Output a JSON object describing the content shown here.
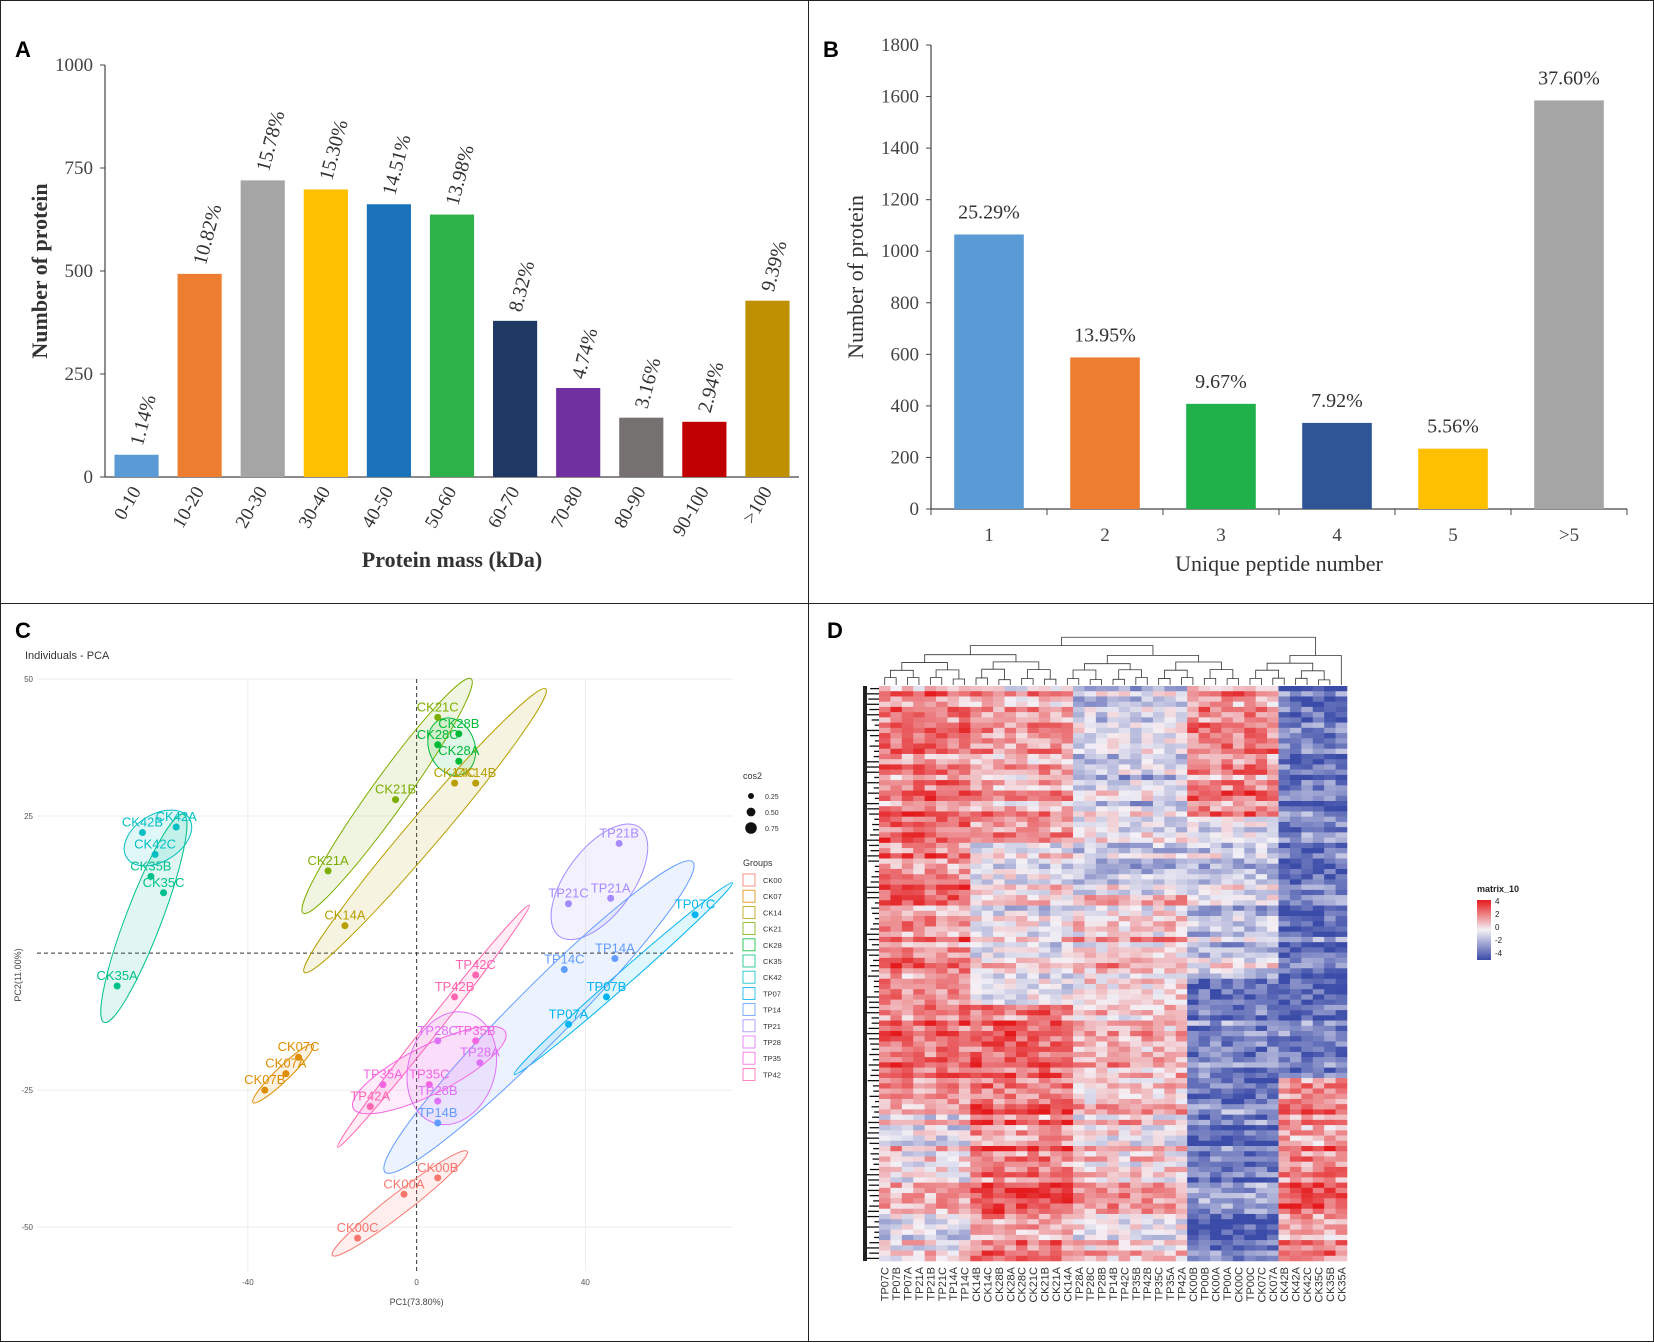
{
  "panel_labels": {
    "a": "A",
    "b": "B",
    "c": "C",
    "d": "D"
  },
  "chart_data": [
    {
      "panel": "A",
      "type": "bar",
      "title": "",
      "xlabel": "Protein mass (kDa)",
      "ylabel": "Number of protein",
      "ylim": [
        0,
        1000
      ],
      "yticks": [
        "0",
        "250",
        "500",
        "750",
        "1000"
      ],
      "categories": [
        "0-10",
        "10-20",
        "20-30",
        "30-40",
        "40-50",
        "50-60",
        "60-70",
        "70-80",
        "80-90",
        "90-100",
        ">100"
      ],
      "values": [
        54,
        493,
        720,
        698,
        662,
        637,
        379,
        216,
        144,
        134,
        428
      ],
      "data_labels": [
        "1.14%",
        "10.82%",
        "15.78%",
        "15.30%",
        "14.51%",
        "13.98%",
        "8.32%",
        "4.74%",
        "3.16%",
        "2.94%",
        "9.39%"
      ],
      "colors": [
        "#5b9bd5",
        "#ed7d31",
        "#a5a5a5",
        "#ffc000",
        "#1a72bb",
        "#2db24a",
        "#203864",
        "#7030a0",
        "#767171",
        "#c00000",
        "#bf9000"
      ]
    },
    {
      "panel": "B",
      "type": "bar",
      "title": "",
      "xlabel": "Unique peptide number",
      "ylabel": "Number of protein",
      "ylim": [
        0,
        1800
      ],
      "yticks": [
        "0",
        "200",
        "400",
        "600",
        "800",
        "1000",
        "1200",
        "1400",
        "1600",
        "1800"
      ],
      "categories": [
        "1",
        "2",
        "3",
        "4",
        "5",
        ">5"
      ],
      "values": [
        1065,
        588,
        408,
        334,
        234,
        1585
      ],
      "data_labels": [
        "25.29%",
        "13.95%",
        "9.67%",
        "7.92%",
        "5.56%",
        "37.60%"
      ],
      "colors": [
        "#5b9bd5",
        "#ed7d31",
        "#21b14b",
        "#2f5597",
        "#ffc000",
        "#a5a5a5"
      ]
    },
    {
      "panel": "C",
      "type": "scatter",
      "title": "Individuals - PCA",
      "xlabel": "PC1(73.80%)",
      "ylabel": "PC2(11.00%)",
      "xlim": [
        -90,
        75
      ],
      "ylim": [
        -58,
        50
      ],
      "xticks": [
        -40,
        0,
        40
      ],
      "yticks": [
        -50,
        -25,
        25,
        50
      ],
      "size_legend_title": "cos2",
      "size_legend": [
        "0.25",
        "0.50",
        "0.75"
      ],
      "groups_legend_title": "Groups",
      "groups": [
        {
          "name": "CK00",
          "color": "#f8766d"
        },
        {
          "name": "CK07",
          "color": "#de8c00"
        },
        {
          "name": "CK14",
          "color": "#b79f00"
        },
        {
          "name": "CK21",
          "color": "#7cae00"
        },
        {
          "name": "CK28",
          "color": "#00ba38"
        },
        {
          "name": "CK35",
          "color": "#00c08b"
        },
        {
          "name": "CK42",
          "color": "#00bfc4"
        },
        {
          "name": "TP07",
          "color": "#00b4f0"
        },
        {
          "name": "TP14",
          "color": "#619cff"
        },
        {
          "name": "TP21",
          "color": "#a58aff"
        },
        {
          "name": "TP28",
          "color": "#df70f8"
        },
        {
          "name": "TP35",
          "color": "#f564e3"
        },
        {
          "name": "TP42",
          "color": "#ff64b0"
        }
      ],
      "points": [
        {
          "label": "CK21C",
          "group": "CK21",
          "x": 5,
          "y": 43
        },
        {
          "label": "CK28B",
          "group": "CK28",
          "x": 10,
          "y": 40
        },
        {
          "label": "CK28C",
          "group": "CK28",
          "x": 5,
          "y": 38
        },
        {
          "label": "CK28A",
          "group": "CK28",
          "x": 10,
          "y": 35
        },
        {
          "label": "CK14C",
          "group": "CK14",
          "x": 9,
          "y": 31
        },
        {
          "label": "CK14B",
          "group": "CK14",
          "x": 14,
          "y": 31
        },
        {
          "label": "CK21B",
          "group": "CK21",
          "x": -5,
          "y": 28
        },
        {
          "label": "CK21A",
          "group": "CK21",
          "x": -21,
          "y": 15
        },
        {
          "label": "CK14A",
          "group": "CK14",
          "x": -17,
          "y": 5
        },
        {
          "label": "CK42B",
          "group": "CK42",
          "x": -65,
          "y": 22
        },
        {
          "label": "CK42A",
          "group": "CK42",
          "x": -57,
          "y": 23
        },
        {
          "label": "CK42C",
          "group": "CK42",
          "x": -62,
          "y": 18
        },
        {
          "label": "CK35B",
          "group": "CK35",
          "x": -63,
          "y": 14
        },
        {
          "label": "CK35C",
          "group": "CK35",
          "x": -60,
          "y": 11
        },
        {
          "label": "CK35A",
          "group": "CK35",
          "x": -71,
          "y": -6
        },
        {
          "label": "TP21B",
          "group": "TP21",
          "x": 48,
          "y": 20
        },
        {
          "label": "TP21C",
          "group": "TP21",
          "x": 36,
          "y": 9
        },
        {
          "label": "TP21A",
          "group": "TP21",
          "x": 46,
          "y": 10
        },
        {
          "label": "TP07C",
          "group": "TP07",
          "x": 66,
          "y": 7
        },
        {
          "label": "TP14C",
          "group": "TP14",
          "x": 35,
          "y": -3
        },
        {
          "label": "TP14A",
          "group": "TP14",
          "x": 47,
          "y": -1
        },
        {
          "label": "TP07B",
          "group": "TP07",
          "x": 45,
          "y": -8
        },
        {
          "label": "TP07A",
          "group": "TP07",
          "x": 36,
          "y": -13
        },
        {
          "label": "TP42C",
          "group": "TP42",
          "x": 14,
          "y": -4
        },
        {
          "label": "TP42B",
          "group": "TP42",
          "x": 9,
          "y": -8
        },
        {
          "label": "TP28C",
          "group": "TP28",
          "x": 5,
          "y": -16
        },
        {
          "label": "TP35B",
          "group": "TP35",
          "x": 14,
          "y": -16
        },
        {
          "label": "TP28A",
          "group": "TP28",
          "x": 15,
          "y": -20
        },
        {
          "label": "TP35A",
          "group": "TP35",
          "x": -8,
          "y": -24
        },
        {
          "label": "TP35C",
          "group": "TP35",
          "x": 3,
          "y": -24
        },
        {
          "label": "TP28B",
          "group": "TP28",
          "x": 5,
          "y": -27
        },
        {
          "label": "TP42A",
          "group": "TP42",
          "x": -11,
          "y": -28
        },
        {
          "label": "TP14B",
          "group": "TP14",
          "x": 5,
          "y": -31
        },
        {
          "label": "CK07C",
          "group": "CK07",
          "x": -28,
          "y": -19
        },
        {
          "label": "CK07A",
          "group": "CK07",
          "x": -31,
          "y": -22
        },
        {
          "label": "CK07B",
          "group": "CK07",
          "x": -36,
          "y": -25
        },
        {
          "label": "CK00B",
          "group": "CK00",
          "x": 5,
          "y": -41
        },
        {
          "label": "CK00A",
          "group": "CK00",
          "x": -3,
          "y": -44
        },
        {
          "label": "CK00C",
          "group": "CK00",
          "x": -14,
          "y": -52
        }
      ]
    },
    {
      "panel": "D",
      "type": "heatmap",
      "title": "",
      "legend_title": "matrix_10",
      "legend_ticks": [
        "4",
        "2",
        "0",
        "-2",
        "-4"
      ],
      "columns": [
        "TP07C",
        "TP07B",
        "TP07A",
        "TP21A",
        "TP21B",
        "TP21C",
        "TP14A",
        "TP14C",
        "CK14B",
        "CK14C",
        "CK28B",
        "CK28A",
        "CK28C",
        "CK21C",
        "CK21B",
        "CK21A",
        "CK14A",
        "TP28A",
        "TP28C",
        "TP28B",
        "TP14B",
        "TP42C",
        "TP35B",
        "TP42B",
        "TP35C",
        "TP35A",
        "TP42A",
        "CK00B",
        "TP00B",
        "CK00A",
        "TP00A",
        "CK00C",
        "TP00C",
        "CK07C",
        "CK07A",
        "CK42B",
        "CK42A",
        "CK42C",
        "CK35C",
        "CK35B",
        "CK35A"
      ],
      "colors": {
        "high": "#e41a1c",
        "mid": "#f4f1f6",
        "low": "#3a4ba8"
      }
    }
  ]
}
